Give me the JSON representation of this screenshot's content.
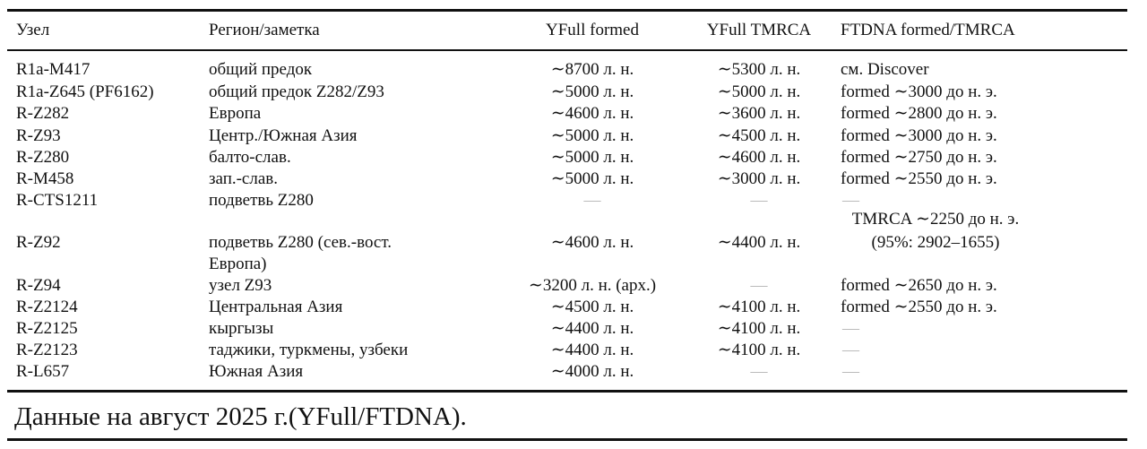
{
  "table": {
    "header": [
      "Узел",
      "Регион/заметка",
      "YFull formed",
      "YFull TMRCA",
      "FTDNA formed/TMRCA"
    ],
    "rows": [
      [
        "R1a-M417",
        "общий предок",
        "∼8700 л. н.",
        "∼5300 л. н.",
        "см. Discover"
      ],
      [
        "R1a-Z645 (PF6162)",
        "общий предок Z282/Z93",
        "∼5000 л. н.",
        "∼5000 л. н.",
        "formed ∼3000 до н. э."
      ],
      [
        "R-Z282",
        "Европа",
        "∼4600 л. н.",
        "∼3600 л. н.",
        "formed ∼2800 до н. э."
      ],
      [
        "R-Z93",
        "Центр./Южная Азия",
        "∼5000 л. н.",
        "∼4500 л. н.",
        "formed ∼3000 до н. э."
      ],
      [
        "R-Z280",
        "балто-слав.",
        "∼5000 л. н.",
        "∼4600 л. н.",
        "formed ∼2750 до н. э."
      ],
      [
        "R-M458",
        "зап.-слав.",
        "∼5000 л. н.",
        "∼3000 л. н.",
        "formed ∼2550 до н. э."
      ],
      [
        "R-CTS1211",
        "подветвь Z280",
        "—",
        "—",
        "—"
      ],
      [
        "R-Z92",
        [
          "подветвь Z280 (сев.-вост.",
          "Европа)"
        ],
        "∼4600 л. н.",
        "∼4400 л. н.",
        [
          "TMRCA ∼2250 до н. э.",
          "(95%: 2902–1655)"
        ]
      ],
      [
        "R-Z94",
        "узел Z93",
        "∼3200 л. н. (арх.)",
        "—",
        "formed ∼2650 до н. э."
      ],
      [
        "R-Z2124",
        "Центральная Азия",
        "∼4500 л. н.",
        "∼4100 л. н.",
        "formed ∼2550 до н. э."
      ],
      [
        "R-Z2125",
        "кыргызы",
        "∼4400 л. н.",
        "∼4100 л. н.",
        "—"
      ],
      [
        "R-Z2123",
        "таджики, туркмены, узбеки",
        "∼4400 л. н.",
        "∼4100 л. н.",
        "—"
      ],
      [
        "R-L657",
        "Южная Азия",
        "∼4000 л. н.",
        "—",
        "—"
      ]
    ],
    "caption": "Данные на август 2025 г.(YFull/FTDNA)."
  }
}
